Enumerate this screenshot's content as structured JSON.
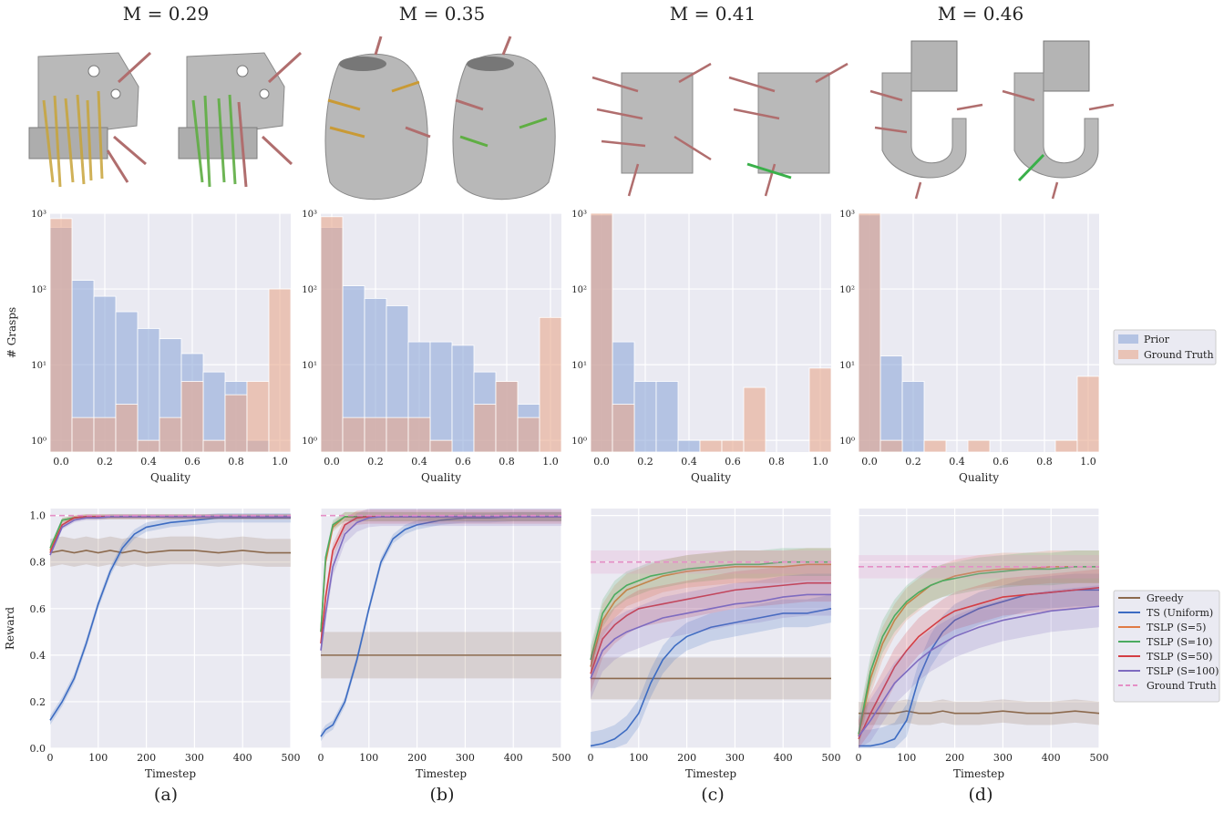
{
  "figure": {
    "columns": [
      {
        "title": "M = 0.29",
        "caption": "(a)"
      },
      {
        "title": "M = 0.35",
        "caption": "(b)"
      },
      {
        "title": "M = 0.41",
        "caption": "(c)"
      },
      {
        "title": "M = 0.46",
        "caption": "(d)"
      }
    ]
  },
  "colors": {
    "prior": "#8FA8D8",
    "ground_truth": "#E8A98E",
    "overlap": "#B58D8E",
    "greedy": "#8C6A4E",
    "ts_uniform": "#3D6CC2",
    "tslp_s5": "#E07B45",
    "tslp_s10": "#4CAB60",
    "tslp_s50": "#D43E44",
    "tslp_s100": "#7E6BC0",
    "gt_line": "#E58FC6",
    "panel_bg": "#EAEAF2"
  },
  "chart_data": [
    {
      "type": "bar",
      "panel": "hist-a",
      "xlabel": "Quality",
      "ylabel": "# Grasps",
      "yscale": "log",
      "ylim": [
        0.7,
        1000
      ],
      "xlim": [
        -0.05,
        1.05
      ],
      "bin_edges": [
        -0.05,
        0.05,
        0.15,
        0.25,
        0.35,
        0.45,
        0.55,
        0.65,
        0.75,
        0.85,
        0.95,
        1.05
      ],
      "x_ticks": [
        "0.0",
        "0.2",
        "0.4",
        "0.6",
        "0.8",
        "1.0"
      ],
      "y_ticks": [
        "10⁰",
        "10¹",
        "10²",
        "10³"
      ],
      "series": [
        {
          "name": "Prior",
          "values": [
            650,
            130,
            80,
            50,
            30,
            22,
            14,
            8,
            6,
            1,
            0
          ]
        },
        {
          "name": "Ground Truth",
          "values": [
            850,
            2,
            2,
            3,
            1,
            2,
            6,
            1,
            4,
            6,
            100
          ]
        }
      ]
    },
    {
      "type": "bar",
      "panel": "hist-b",
      "xlabel": "Quality",
      "yscale": "log",
      "ylim": [
        0.7,
        1000
      ],
      "xlim": [
        -0.05,
        1.05
      ],
      "bin_edges": [
        -0.05,
        0.05,
        0.15,
        0.25,
        0.35,
        0.45,
        0.55,
        0.65,
        0.75,
        0.85,
        0.95,
        1.05
      ],
      "x_ticks": [
        "0.0",
        "0.2",
        "0.4",
        "0.6",
        "0.8",
        "1.0"
      ],
      "y_ticks": [
        "10⁰",
        "10¹",
        "10²",
        "10³"
      ],
      "series": [
        {
          "name": "Prior",
          "values": [
            650,
            110,
            75,
            60,
            20,
            20,
            18,
            8,
            6,
            3,
            0
          ]
        },
        {
          "name": "Ground Truth",
          "values": [
            900,
            2,
            2,
            2,
            2,
            1,
            0,
            3,
            6,
            2,
            42
          ]
        }
      ]
    },
    {
      "type": "bar",
      "panel": "hist-c",
      "xlabel": "Quality",
      "yscale": "log",
      "ylim": [
        0.7,
        1000
      ],
      "xlim": [
        -0.05,
        1.05
      ],
      "bin_edges": [
        -0.05,
        0.05,
        0.15,
        0.25,
        0.35,
        0.45,
        0.55,
        0.65,
        0.75,
        0.85,
        0.95,
        1.05
      ],
      "x_ticks": [
        "0.0",
        "0.2",
        "0.4",
        "0.6",
        "0.8",
        "1.0"
      ],
      "y_ticks": [
        "10⁰",
        "10¹",
        "10²",
        "10³"
      ],
      "series": [
        {
          "name": "Prior",
          "values": [
            950,
            20,
            6,
            6,
            1,
            0,
            0,
            0,
            0,
            0,
            0
          ]
        },
        {
          "name": "Ground Truth",
          "values": [
            1000,
            3,
            0,
            0,
            0,
            1,
            1,
            5,
            0,
            0,
            9
          ]
        }
      ]
    },
    {
      "type": "bar",
      "panel": "hist-d",
      "xlabel": "Quality",
      "yscale": "log",
      "ylim": [
        0.7,
        1000
      ],
      "xlim": [
        -0.05,
        1.05
      ],
      "bin_edges": [
        -0.05,
        0.05,
        0.15,
        0.25,
        0.35,
        0.45,
        0.55,
        0.65,
        0.75,
        0.85,
        0.95,
        1.05
      ],
      "x_ticks": [
        "0.0",
        "0.2",
        "0.4",
        "0.6",
        "0.8",
        "1.0"
      ],
      "y_ticks": [
        "10⁰",
        "10¹",
        "10²",
        "10³"
      ],
      "series": [
        {
          "name": "Prior",
          "values": [
            950,
            13,
            6,
            0,
            0,
            0,
            0,
            0,
            0,
            0,
            0
          ]
        },
        {
          "name": "Ground Truth",
          "values": [
            1000,
            1,
            0,
            1,
            0,
            1,
            0,
            0,
            0,
            1,
            7
          ]
        }
      ]
    },
    {
      "type": "line",
      "panel": "reward-a",
      "xlabel": "Timestep",
      "ylabel": "Reward",
      "xlim": [
        0,
        500
      ],
      "ylim": [
        0,
        1.03
      ],
      "x_ticks": [
        "0",
        "100",
        "200",
        "300",
        "400",
        "500"
      ],
      "y_ticks": [
        "0.0",
        "0.2",
        "0.4",
        "0.6",
        "0.8",
        "1.0"
      ],
      "x": [
        0,
        25,
        50,
        75,
        100,
        125,
        150,
        175,
        200,
        250,
        300,
        350,
        400,
        450,
        500
      ],
      "series": [
        {
          "name": "Greedy",
          "values": [
            0.84,
            0.85,
            0.84,
            0.85,
            0.84,
            0.85,
            0.84,
            0.85,
            0.84,
            0.85,
            0.85,
            0.84,
            0.85,
            0.84,
            0.84
          ],
          "band": 0.06
        },
        {
          "name": "TS (Uniform)",
          "values": [
            0.12,
            0.2,
            0.3,
            0.45,
            0.62,
            0.76,
            0.86,
            0.92,
            0.95,
            0.97,
            0.98,
            0.99,
            0.99,
            0.99,
            0.99
          ],
          "band": 0.02
        },
        {
          "name": "TSLP (S=5)",
          "values": [
            0.85,
            0.98,
            0.99,
            0.995,
            0.995,
            0.995,
            0.995,
            0.995,
            0.995,
            0.995,
            0.995,
            0.995,
            0.995,
            0.995,
            0.995
          ],
          "band": 0.01
        },
        {
          "name": "TSLP (S=10)",
          "values": [
            0.86,
            0.98,
            0.99,
            0.995,
            0.995,
            0.995,
            0.995,
            0.995,
            0.995,
            0.995,
            0.995,
            0.995,
            0.995,
            0.995,
            0.995
          ],
          "band": 0.01
        },
        {
          "name": "TSLP (S=50)",
          "values": [
            0.84,
            0.96,
            0.99,
            0.995,
            0.995,
            0.995,
            0.995,
            0.995,
            0.995,
            0.995,
            0.995,
            0.995,
            0.995,
            0.995,
            0.995
          ],
          "band": 0.01
        },
        {
          "name": "TSLP (S=100)",
          "values": [
            0.83,
            0.95,
            0.98,
            0.99,
            0.99,
            0.995,
            0.995,
            0.995,
            0.995,
            0.995,
            0.995,
            0.995,
            0.995,
            0.995,
            0.995
          ],
          "band": 0.01
        },
        {
          "name": "Ground Truth",
          "values": [
            1.0,
            1.0,
            1.0,
            1.0,
            1.0,
            1.0,
            1.0,
            1.0,
            1.0,
            1.0,
            1.0,
            1.0,
            1.0,
            1.0,
            1.0
          ],
          "dashed": true
        }
      ]
    },
    {
      "type": "line",
      "panel": "reward-b",
      "xlabel": "Timestep",
      "xlim": [
        0,
        500
      ],
      "ylim": [
        0,
        1.03
      ],
      "x_ticks": [
        "0",
        "100",
        "200",
        "300",
        "400",
        "500"
      ],
      "x": [
        0,
        10,
        25,
        50,
        75,
        100,
        125,
        150,
        175,
        200,
        250,
        300,
        350,
        400,
        450,
        500
      ],
      "series": [
        {
          "name": "Greedy",
          "values": [
            0.4,
            0.4,
            0.4,
            0.4,
            0.4,
            0.4,
            0.4,
            0.4,
            0.4,
            0.4,
            0.4,
            0.4,
            0.4,
            0.4,
            0.4,
            0.4
          ],
          "band": 0.1
        },
        {
          "name": "TS (Uniform)",
          "values": [
            0.05,
            0.08,
            0.1,
            0.2,
            0.38,
            0.6,
            0.8,
            0.9,
            0.94,
            0.96,
            0.98,
            0.99,
            0.99,
            0.995,
            0.995,
            0.995
          ],
          "band": 0.02
        },
        {
          "name": "TSLP (S=5)",
          "values": [
            0.5,
            0.8,
            0.95,
            0.995,
            0.995,
            0.995,
            0.995,
            0.995,
            0.995,
            0.995,
            0.995,
            0.995,
            0.995,
            0.995,
            0.995,
            0.995
          ],
          "band": 0.02
        },
        {
          "name": "TSLP (S=10)",
          "values": [
            0.5,
            0.82,
            0.96,
            0.995,
            0.995,
            0.995,
            0.995,
            0.995,
            0.995,
            0.995,
            0.995,
            0.995,
            0.995,
            0.995,
            0.995,
            0.995
          ],
          "band": 0.02
        },
        {
          "name": "TSLP (S=50)",
          "values": [
            0.45,
            0.65,
            0.85,
            0.96,
            0.99,
            0.995,
            0.995,
            0.995,
            0.995,
            0.995,
            0.995,
            0.995,
            0.995,
            0.995,
            0.995,
            0.995
          ],
          "band": 0.03
        },
        {
          "name": "TSLP (S=100)",
          "values": [
            0.42,
            0.58,
            0.78,
            0.92,
            0.97,
            0.99,
            0.995,
            0.995,
            0.995,
            0.995,
            0.995,
            0.995,
            0.995,
            0.995,
            0.995,
            0.995
          ],
          "band": 0.04
        },
        {
          "name": "Ground Truth",
          "values": [
            1.0,
            1.0,
            1.0,
            1.0,
            1.0,
            1.0,
            1.0,
            1.0,
            1.0,
            1.0,
            1.0,
            1.0,
            1.0,
            1.0,
            1.0,
            1.0
          ],
          "dashed": true
        }
      ]
    },
    {
      "type": "line",
      "panel": "reward-c",
      "xlabel": "Timestep",
      "xlim": [
        0,
        500
      ],
      "ylim": [
        0,
        1.03
      ],
      "x_ticks": [
        "0",
        "100",
        "200",
        "300",
        "400",
        "500"
      ],
      "x": [
        0,
        25,
        50,
        75,
        100,
        125,
        150,
        175,
        200,
        250,
        300,
        350,
        400,
        450,
        500
      ],
      "series": [
        {
          "name": "Greedy",
          "values": [
            0.3,
            0.3,
            0.3,
            0.3,
            0.3,
            0.3,
            0.3,
            0.3,
            0.3,
            0.3,
            0.3,
            0.3,
            0.3,
            0.3,
            0.3
          ],
          "band": 0.09
        },
        {
          "name": "TS (Uniform)",
          "values": [
            0.01,
            0.02,
            0.04,
            0.08,
            0.15,
            0.28,
            0.38,
            0.44,
            0.48,
            0.52,
            0.54,
            0.56,
            0.58,
            0.58,
            0.6
          ],
          "band": 0.06
        },
        {
          "name": "TSLP (S=5)",
          "values": [
            0.35,
            0.55,
            0.63,
            0.68,
            0.7,
            0.72,
            0.74,
            0.75,
            0.76,
            0.77,
            0.78,
            0.78,
            0.78,
            0.79,
            0.79
          ],
          "band": 0.07
        },
        {
          "name": "TSLP (S=10)",
          "values": [
            0.38,
            0.58,
            0.66,
            0.7,
            0.72,
            0.74,
            0.75,
            0.76,
            0.77,
            0.78,
            0.79,
            0.79,
            0.8,
            0.8,
            0.8
          ],
          "band": 0.06
        },
        {
          "name": "TSLP (S=50)",
          "values": [
            0.32,
            0.47,
            0.53,
            0.57,
            0.6,
            0.61,
            0.62,
            0.63,
            0.64,
            0.66,
            0.68,
            0.69,
            0.7,
            0.71,
            0.71
          ],
          "band": 0.08
        },
        {
          "name": "TSLP (S=100)",
          "values": [
            0.3,
            0.42,
            0.47,
            0.5,
            0.52,
            0.54,
            0.56,
            0.57,
            0.58,
            0.6,
            0.62,
            0.63,
            0.65,
            0.66,
            0.66
          ],
          "band": 0.09
        },
        {
          "name": "Ground Truth",
          "values": [
            0.8,
            0.8,
            0.8,
            0.8,
            0.8,
            0.8,
            0.8,
            0.8,
            0.8,
            0.8,
            0.8,
            0.8,
            0.8,
            0.8,
            0.8
          ],
          "dashed": true,
          "band": 0.05
        }
      ]
    },
    {
      "type": "line",
      "panel": "reward-d",
      "xlabel": "Timestep",
      "xlim": [
        0,
        500
      ],
      "ylim": [
        0,
        1.03
      ],
      "x_ticks": [
        "0",
        "100",
        "200",
        "300",
        "400",
        "500"
      ],
      "x": [
        0,
        25,
        50,
        75,
        100,
        125,
        150,
        175,
        200,
        250,
        300,
        350,
        400,
        450,
        500
      ],
      "series": [
        {
          "name": "Greedy",
          "values": [
            0.15,
            0.15,
            0.15,
            0.15,
            0.16,
            0.15,
            0.15,
            0.16,
            0.15,
            0.15,
            0.16,
            0.15,
            0.15,
            0.16,
            0.15
          ],
          "band": 0.05
        },
        {
          "name": "TS (Uniform)",
          "values": [
            0.01,
            0.01,
            0.02,
            0.04,
            0.12,
            0.3,
            0.42,
            0.5,
            0.55,
            0.6,
            0.63,
            0.66,
            0.67,
            0.68,
            0.68
          ],
          "band": 0.07
        },
        {
          "name": "TSLP (S=5)",
          "values": [
            0.05,
            0.3,
            0.45,
            0.55,
            0.62,
            0.66,
            0.7,
            0.72,
            0.74,
            0.76,
            0.77,
            0.77,
            0.78,
            0.78,
            0.78
          ],
          "band": 0.07
        },
        {
          "name": "TSLP (S=10)",
          "values": [
            0.06,
            0.33,
            0.48,
            0.57,
            0.63,
            0.67,
            0.7,
            0.72,
            0.73,
            0.75,
            0.76,
            0.77,
            0.77,
            0.78,
            0.78
          ],
          "band": 0.07
        },
        {
          "name": "TSLP (S=50)",
          "values": [
            0.04,
            0.15,
            0.25,
            0.35,
            0.42,
            0.48,
            0.52,
            0.56,
            0.59,
            0.62,
            0.65,
            0.66,
            0.67,
            0.68,
            0.69
          ],
          "band": 0.08
        },
        {
          "name": "TSLP (S=100)",
          "values": [
            0.05,
            0.12,
            0.2,
            0.28,
            0.33,
            0.38,
            0.42,
            0.45,
            0.48,
            0.52,
            0.55,
            0.57,
            0.59,
            0.6,
            0.61
          ],
          "band": 0.09
        },
        {
          "name": "Ground Truth",
          "values": [
            0.78,
            0.78,
            0.78,
            0.78,
            0.78,
            0.78,
            0.78,
            0.78,
            0.78,
            0.78,
            0.78,
            0.78,
            0.78,
            0.78,
            0.78
          ],
          "dashed": true,
          "band": 0.05
        }
      ]
    }
  ],
  "legends": {
    "histogram": [
      "Prior",
      "Ground Truth"
    ],
    "reward": [
      "Greedy",
      "TS (Uniform)",
      "TSLP (S=5)",
      "TSLP (S=10)",
      "TSLP (S=50)",
      "TSLP (S=100)",
      "Ground Truth"
    ]
  }
}
